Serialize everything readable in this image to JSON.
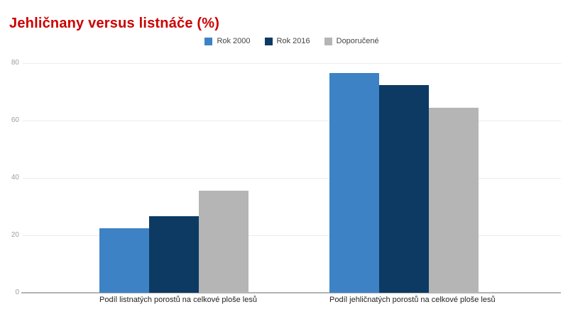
{
  "page": {
    "title": "Jehličnany versus listnáče (%)",
    "title_color": "#cc0000"
  },
  "chart_data": {
    "type": "bar",
    "title": "Jehličnany versus listnáče (%)",
    "categories": [
      "Podíl listnatých porostů na celkové ploše lesů",
      "Podíl jehličnatých porostů na celkové ploše lesů"
    ],
    "series": [
      {
        "name": "Rok 2000",
        "color": "#3d82c4",
        "values": [
          22.5,
          76.5
        ]
      },
      {
        "name": "Rok 2016",
        "color": "#0d3a63",
        "values": [
          26.7,
          72.3
        ]
      },
      {
        "name": "Doporučené",
        "color": "#b5b5b5",
        "values": [
          35.5,
          64.4
        ]
      }
    ],
    "ylabel": "",
    "xlabel": "",
    "ylim": [
      0,
      80
    ],
    "yticks": [
      0,
      20,
      40,
      60,
      80
    ],
    "grid": true,
    "legend_position": "top",
    "colors": {
      "grid_line": "#ececec",
      "baseline": "#b3b3b3",
      "y_tick_text": "#9e9e9e",
      "category_text": "#222222",
      "legend_text": "#444444",
      "background": "#ffffff"
    }
  }
}
